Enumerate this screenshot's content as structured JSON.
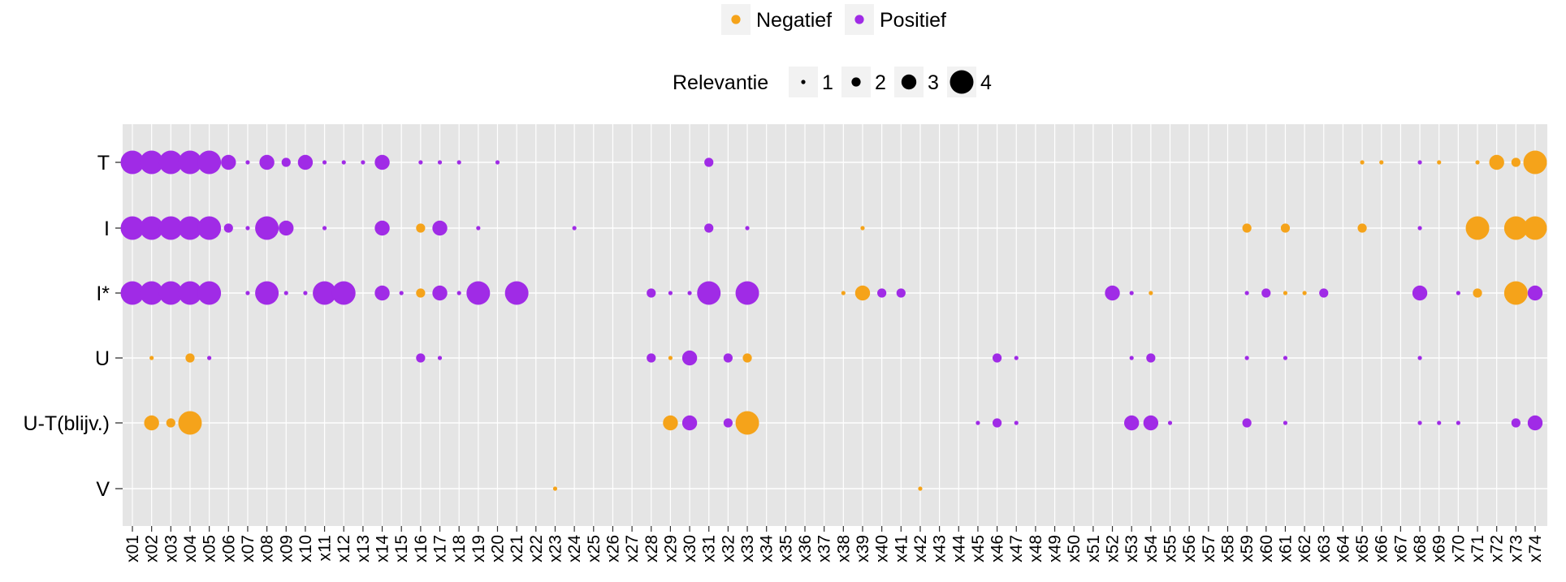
{
  "chart_data": {
    "type": "scatter",
    "legend_placement": "top",
    "grid": true,
    "colors": {
      "Negatief": "#F5A31A",
      "Positief": "#A02BE6",
      "panel": "#E5E5E5",
      "grid": "#FFFFFF"
    },
    "legend": {
      "color_entries": [
        "Negatief",
        "Positief"
      ],
      "size_title": "Relevantie",
      "size_entries": [
        "1",
        "2",
        "3",
        "4"
      ]
    },
    "y_categories": [
      "T",
      "I",
      "I*",
      "U",
      "U-T(blijv.)",
      "V"
    ],
    "x_categories": [
      "x01",
      "x02",
      "x03",
      "x04",
      "x05",
      "x06",
      "x07",
      "x08",
      "x09",
      "x10",
      "x11",
      "x12",
      "x13",
      "x14",
      "x15",
      "x16",
      "x17",
      "x18",
      "x19",
      "x20",
      "x21",
      "x22",
      "x23",
      "x24",
      "x25",
      "x26",
      "x27",
      "x28",
      "x29",
      "x30",
      "x31",
      "x32",
      "x33",
      "x34",
      "x35",
      "x36",
      "x37",
      "x38",
      "x39",
      "x40",
      "x41",
      "x42",
      "x43",
      "x44",
      "x45",
      "x46",
      "x47",
      "x48",
      "x49",
      "x50",
      "x51",
      "x52",
      "x53",
      "x54",
      "x55",
      "x56",
      "x57",
      "x58",
      "x59",
      "x60",
      "x61",
      "x62",
      "x63",
      "x64",
      "x65",
      "x66",
      "x67",
      "x68",
      "x69",
      "x70",
      "x71",
      "x72",
      "x73",
      "x74"
    ],
    "points": [
      {
        "x": "x01",
        "y": "T",
        "sign": "Positief",
        "size": 4
      },
      {
        "x": "x02",
        "y": "T",
        "sign": "Positief",
        "size": 4
      },
      {
        "x": "x03",
        "y": "T",
        "sign": "Positief",
        "size": 4
      },
      {
        "x": "x04",
        "y": "T",
        "sign": "Positief",
        "size": 4
      },
      {
        "x": "x05",
        "y": "T",
        "sign": "Positief",
        "size": 4
      },
      {
        "x": "x06",
        "y": "T",
        "sign": "Positief",
        "size": 3
      },
      {
        "x": "x07",
        "y": "T",
        "sign": "Positief",
        "size": 1
      },
      {
        "x": "x08",
        "y": "T",
        "sign": "Positief",
        "size": 3
      },
      {
        "x": "x09",
        "y": "T",
        "sign": "Positief",
        "size": 2
      },
      {
        "x": "x10",
        "y": "T",
        "sign": "Positief",
        "size": 3
      },
      {
        "x": "x11",
        "y": "T",
        "sign": "Positief",
        "size": 1
      },
      {
        "x": "x12",
        "y": "T",
        "sign": "Positief",
        "size": 1
      },
      {
        "x": "x13",
        "y": "T",
        "sign": "Positief",
        "size": 1
      },
      {
        "x": "x14",
        "y": "T",
        "sign": "Positief",
        "size": 3
      },
      {
        "x": "x16",
        "y": "T",
        "sign": "Positief",
        "size": 1
      },
      {
        "x": "x17",
        "y": "T",
        "sign": "Positief",
        "size": 1
      },
      {
        "x": "x18",
        "y": "T",
        "sign": "Positief",
        "size": 1
      },
      {
        "x": "x20",
        "y": "T",
        "sign": "Positief",
        "size": 1
      },
      {
        "x": "x31",
        "y": "T",
        "sign": "Positief",
        "size": 2
      },
      {
        "x": "x65",
        "y": "T",
        "sign": "Negatief",
        "size": 1
      },
      {
        "x": "x66",
        "y": "T",
        "sign": "Negatief",
        "size": 1
      },
      {
        "x": "x68",
        "y": "T",
        "sign": "Positief",
        "size": 1
      },
      {
        "x": "x69",
        "y": "T",
        "sign": "Negatief",
        "size": 1
      },
      {
        "x": "x71",
        "y": "T",
        "sign": "Negatief",
        "size": 1
      },
      {
        "x": "x72",
        "y": "T",
        "sign": "Negatief",
        "size": 3
      },
      {
        "x": "x73",
        "y": "T",
        "sign": "Negatief",
        "size": 2
      },
      {
        "x": "x74",
        "y": "T",
        "sign": "Negatief",
        "size": 4
      },
      {
        "x": "x74",
        "y": "T",
        "sign": "Negatief",
        "size": 3
      },
      {
        "x": "x01",
        "y": "I",
        "sign": "Positief",
        "size": 4
      },
      {
        "x": "x02",
        "y": "I",
        "sign": "Positief",
        "size": 4
      },
      {
        "x": "x03",
        "y": "I",
        "sign": "Positief",
        "size": 4
      },
      {
        "x": "x04",
        "y": "I",
        "sign": "Positief",
        "size": 4
      },
      {
        "x": "x05",
        "y": "I",
        "sign": "Positief",
        "size": 4
      },
      {
        "x": "x06",
        "y": "I",
        "sign": "Positief",
        "size": 2
      },
      {
        "x": "x07",
        "y": "I",
        "sign": "Positief",
        "size": 1
      },
      {
        "x": "x08",
        "y": "I",
        "sign": "Positief",
        "size": 4
      },
      {
        "x": "x09",
        "y": "I",
        "sign": "Positief",
        "size": 3
      },
      {
        "x": "x11",
        "y": "I",
        "sign": "Positief",
        "size": 1
      },
      {
        "x": "x14",
        "y": "I",
        "sign": "Positief",
        "size": 3
      },
      {
        "x": "x16",
        "y": "I",
        "sign": "Negatief",
        "size": 2
      },
      {
        "x": "x17",
        "y": "I",
        "sign": "Positief",
        "size": 3
      },
      {
        "x": "x19",
        "y": "I",
        "sign": "Positief",
        "size": 1
      },
      {
        "x": "x24",
        "y": "I",
        "sign": "Positief",
        "size": 1
      },
      {
        "x": "x31",
        "y": "I",
        "sign": "Positief",
        "size": 2
      },
      {
        "x": "x33",
        "y": "I",
        "sign": "Positief",
        "size": 1
      },
      {
        "x": "x39",
        "y": "I",
        "sign": "Negatief",
        "size": 1
      },
      {
        "x": "x59",
        "y": "I",
        "sign": "Negatief",
        "size": 2
      },
      {
        "x": "x61",
        "y": "I",
        "sign": "Negatief",
        "size": 2
      },
      {
        "x": "x65",
        "y": "I",
        "sign": "Negatief",
        "size": 2
      },
      {
        "x": "x68",
        "y": "I",
        "sign": "Positief",
        "size": 1
      },
      {
        "x": "x71",
        "y": "I",
        "sign": "Negatief",
        "size": 4
      },
      {
        "x": "x73",
        "y": "I",
        "sign": "Negatief",
        "size": 4
      },
      {
        "x": "x74",
        "y": "I",
        "sign": "Negatief",
        "size": 4
      },
      {
        "x": "x01",
        "y": "I*",
        "sign": "Positief",
        "size": 4
      },
      {
        "x": "x02",
        "y": "I*",
        "sign": "Positief",
        "size": 4
      },
      {
        "x": "x03",
        "y": "I*",
        "sign": "Positief",
        "size": 4
      },
      {
        "x": "x04",
        "y": "I*",
        "sign": "Positief",
        "size": 4
      },
      {
        "x": "x05",
        "y": "I*",
        "sign": "Positief",
        "size": 4
      },
      {
        "x": "x07",
        "y": "I*",
        "sign": "Positief",
        "size": 1
      },
      {
        "x": "x08",
        "y": "I*",
        "sign": "Positief",
        "size": 4
      },
      {
        "x": "x09",
        "y": "I*",
        "sign": "Positief",
        "size": 1
      },
      {
        "x": "x10",
        "y": "I*",
        "sign": "Positief",
        "size": 1
      },
      {
        "x": "x11",
        "y": "I*",
        "sign": "Positief",
        "size": 4
      },
      {
        "x": "x12",
        "y": "I*",
        "sign": "Positief",
        "size": 4
      },
      {
        "x": "x14",
        "y": "I*",
        "sign": "Positief",
        "size": 3
      },
      {
        "x": "x15",
        "y": "I*",
        "sign": "Positief",
        "size": 1
      },
      {
        "x": "x16",
        "y": "I*",
        "sign": "Negatief",
        "size": 2
      },
      {
        "x": "x17",
        "y": "I*",
        "sign": "Positief",
        "size": 3
      },
      {
        "x": "x18",
        "y": "I*",
        "sign": "Positief",
        "size": 1
      },
      {
        "x": "x19",
        "y": "I*",
        "sign": "Positief",
        "size": 4
      },
      {
        "x": "x21",
        "y": "I*",
        "sign": "Positief",
        "size": 4
      },
      {
        "x": "x28",
        "y": "I*",
        "sign": "Positief",
        "size": 2
      },
      {
        "x": "x29",
        "y": "I*",
        "sign": "Positief",
        "size": 1
      },
      {
        "x": "x30",
        "y": "I*",
        "sign": "Positief",
        "size": 1
      },
      {
        "x": "x31",
        "y": "I*",
        "sign": "Positief",
        "size": 4
      },
      {
        "x": "x33",
        "y": "I*",
        "sign": "Positief",
        "size": 4
      },
      {
        "x": "x38",
        "y": "I*",
        "sign": "Negatief",
        "size": 1
      },
      {
        "x": "x39",
        "y": "I*",
        "sign": "Negatief",
        "size": 3
      },
      {
        "x": "x40",
        "y": "I*",
        "sign": "Positief",
        "size": 2
      },
      {
        "x": "x41",
        "y": "I*",
        "sign": "Positief",
        "size": 2
      },
      {
        "x": "x52",
        "y": "I*",
        "sign": "Positief",
        "size": 3
      },
      {
        "x": "x53",
        "y": "I*",
        "sign": "Positief",
        "size": 1
      },
      {
        "x": "x54",
        "y": "I*",
        "sign": "Negatief",
        "size": 1
      },
      {
        "x": "x59",
        "y": "I*",
        "sign": "Positief",
        "size": 1
      },
      {
        "x": "x60",
        "y": "I*",
        "sign": "Positief",
        "size": 2
      },
      {
        "x": "x61",
        "y": "I*",
        "sign": "Negatief",
        "size": 1
      },
      {
        "x": "x62",
        "y": "I*",
        "sign": "Negatief",
        "size": 1
      },
      {
        "x": "x63",
        "y": "I*",
        "sign": "Positief",
        "size": 2
      },
      {
        "x": "x68",
        "y": "I*",
        "sign": "Positief",
        "size": 3
      },
      {
        "x": "x70",
        "y": "I*",
        "sign": "Positief",
        "size": 1
      },
      {
        "x": "x71",
        "y": "I*",
        "sign": "Negatief",
        "size": 2
      },
      {
        "x": "x73",
        "y": "I*",
        "sign": "Negatief",
        "size": 4
      },
      {
        "x": "x74",
        "y": "I*",
        "sign": "Positief",
        "size": 3
      },
      {
        "x": "x02",
        "y": "U",
        "sign": "Negatief",
        "size": 1
      },
      {
        "x": "x04",
        "y": "U",
        "sign": "Negatief",
        "size": 2
      },
      {
        "x": "x05",
        "y": "U",
        "sign": "Positief",
        "size": 1
      },
      {
        "x": "x16",
        "y": "U",
        "sign": "Positief",
        "size": 2
      },
      {
        "x": "x17",
        "y": "U",
        "sign": "Positief",
        "size": 1
      },
      {
        "x": "x28",
        "y": "U",
        "sign": "Positief",
        "size": 2
      },
      {
        "x": "x29",
        "y": "U",
        "sign": "Negatief",
        "size": 1
      },
      {
        "x": "x30",
        "y": "U",
        "sign": "Positief",
        "size": 3
      },
      {
        "x": "x32",
        "y": "U",
        "sign": "Positief",
        "size": 2
      },
      {
        "x": "x33",
        "y": "U",
        "sign": "Negatief",
        "size": 2
      },
      {
        "x": "x46",
        "y": "U",
        "sign": "Positief",
        "size": 2
      },
      {
        "x": "x47",
        "y": "U",
        "sign": "Positief",
        "size": 1
      },
      {
        "x": "x53",
        "y": "U",
        "sign": "Positief",
        "size": 1
      },
      {
        "x": "x54",
        "y": "U",
        "sign": "Positief",
        "size": 2
      },
      {
        "x": "x59",
        "y": "U",
        "sign": "Positief",
        "size": 1
      },
      {
        "x": "x61",
        "y": "U",
        "sign": "Positief",
        "size": 1
      },
      {
        "x": "x68",
        "y": "U",
        "sign": "Positief",
        "size": 1
      },
      {
        "x": "x02",
        "y": "U-T(blijv.)",
        "sign": "Negatief",
        "size": 3
      },
      {
        "x": "x03",
        "y": "U-T(blijv.)",
        "sign": "Negatief",
        "size": 2
      },
      {
        "x": "x04",
        "y": "U-T(blijv.)",
        "sign": "Negatief",
        "size": 4
      },
      {
        "x": "x29",
        "y": "U-T(blijv.)",
        "sign": "Negatief",
        "size": 3
      },
      {
        "x": "x30",
        "y": "U-T(blijv.)",
        "sign": "Positief",
        "size": 3
      },
      {
        "x": "x32",
        "y": "U-T(blijv.)",
        "sign": "Positief",
        "size": 2
      },
      {
        "x": "x33",
        "y": "U-T(blijv.)",
        "sign": "Negatief",
        "size": 4
      },
      {
        "x": "x45",
        "y": "U-T(blijv.)",
        "sign": "Positief",
        "size": 1
      },
      {
        "x": "x46",
        "y": "U-T(blijv.)",
        "sign": "Positief",
        "size": 2
      },
      {
        "x": "x47",
        "y": "U-T(blijv.)",
        "sign": "Positief",
        "size": 1
      },
      {
        "x": "x53",
        "y": "U-T(blijv.)",
        "sign": "Positief",
        "size": 3
      },
      {
        "x": "x54",
        "y": "U-T(blijv.)",
        "sign": "Positief",
        "size": 3
      },
      {
        "x": "x55",
        "y": "U-T(blijv.)",
        "sign": "Positief",
        "size": 1
      },
      {
        "x": "x59",
        "y": "U-T(blijv.)",
        "sign": "Positief",
        "size": 2
      },
      {
        "x": "x61",
        "y": "U-T(blijv.)",
        "sign": "Positief",
        "size": 1
      },
      {
        "x": "x68",
        "y": "U-T(blijv.)",
        "sign": "Positief",
        "size": 1
      },
      {
        "x": "x69",
        "y": "U-T(blijv.)",
        "sign": "Positief",
        "size": 1
      },
      {
        "x": "x70",
        "y": "U-T(blijv.)",
        "sign": "Positief",
        "size": 1
      },
      {
        "x": "x73",
        "y": "U-T(blijv.)",
        "sign": "Positief",
        "size": 2
      },
      {
        "x": "x74",
        "y": "U-T(blijv.)",
        "sign": "Positief",
        "size": 3
      },
      {
        "x": "x23",
        "y": "V",
        "sign": "Negatief",
        "size": 1
      },
      {
        "x": "x42",
        "y": "V",
        "sign": "Negatief",
        "size": 1
      }
    ]
  }
}
